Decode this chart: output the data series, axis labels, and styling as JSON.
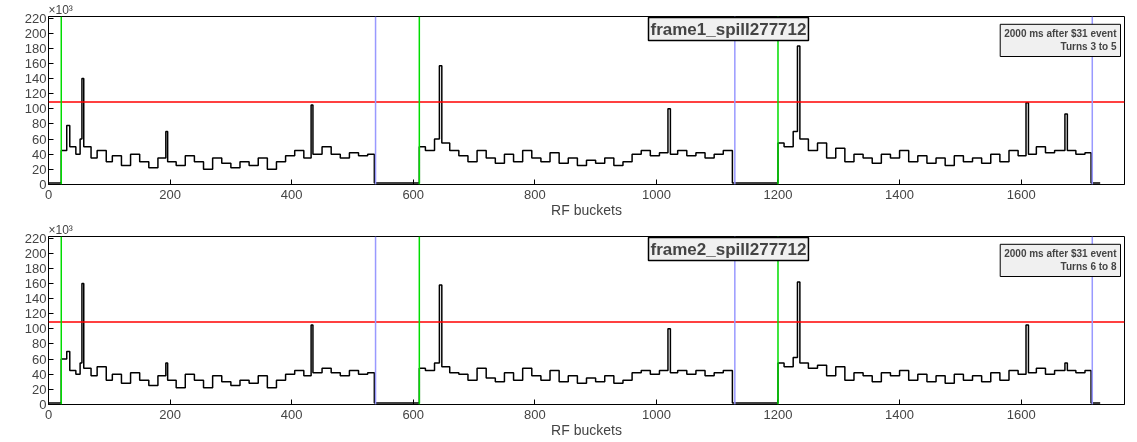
{
  "chart_data": [
    {
      "type": "step",
      "title": "frame1_spill277712",
      "xlabel": "RF buckets",
      "annotations": [
        "×10³",
        "2000 ms after $31 event",
        "Turns 3 to 5"
      ],
      "x": [
        0,
        21,
        30,
        35,
        45,
        52,
        55,
        58,
        70,
        80,
        95,
        105,
        120,
        135,
        150,
        165,
        180,
        193,
        196,
        210,
        225,
        240,
        255,
        270,
        285,
        300,
        315,
        330,
        345,
        360,
        375,
        390,
        405,
        420,
        432,
        435,
        450,
        465,
        480,
        495,
        510,
        525,
        536,
        610,
        620,
        635,
        643,
        647,
        660,
        675,
        690,
        705,
        720,
        735,
        750,
        765,
        780,
        795,
        810,
        825,
        840,
        855,
        870,
        885,
        900,
        915,
        930,
        945,
        960,
        975,
        990,
        1005,
        1019,
        1023,
        1035,
        1050,
        1065,
        1080,
        1095,
        1110,
        1125,
        1200,
        1210,
        1225,
        1232,
        1236,
        1250,
        1265,
        1280,
        1295,
        1310,
        1325,
        1340,
        1355,
        1370,
        1385,
        1400,
        1415,
        1430,
        1445,
        1460,
        1475,
        1490,
        1505,
        1520,
        1535,
        1550,
        1565,
        1580,
        1595,
        1608,
        1612,
        1625,
        1640,
        1655,
        1672,
        1676,
        1690,
        1705,
        1715,
        1730
      ],
      "series": [
        {
          "color": "#000000",
          "values": [
            2,
            45,
            78,
            50,
            40,
            60,
            140,
            50,
            35,
            45,
            30,
            38,
            25,
            40,
            30,
            22,
            35,
            70,
            30,
            25,
            38,
            30,
            20,
            35,
            28,
            22,
            30,
            25,
            35,
            20,
            30,
            38,
            45,
            35,
            105,
            40,
            50,
            40,
            35,
            42,
            38,
            40,
            2,
            50,
            45,
            60,
            157,
            55,
            45,
            38,
            30,
            45,
            35,
            28,
            40,
            30,
            45,
            35,
            30,
            42,
            28,
            35,
            25,
            32,
            28,
            35,
            25,
            30,
            40,
            45,
            38,
            42,
            100,
            40,
            45,
            38,
            42,
            35,
            40,
            45,
            2,
            55,
            50,
            70,
            183,
            60,
            45,
            55,
            35,
            48,
            30,
            40,
            35,
            28,
            40,
            35,
            45,
            30,
            38,
            28,
            35,
            25,
            38,
            30,
            35,
            28,
            40,
            30,
            45,
            38,
            108,
            40,
            50,
            42,
            45,
            93,
            45,
            40,
            42,
            2,
            2
          ]
        }
      ],
      "xlim": [
        0,
        1770
      ],
      "ylim": [
        0,
        222
      ],
      "xticks": [
        0,
        200,
        400,
        600,
        800,
        1000,
        1200,
        1400,
        1600
      ],
      "yticks": [
        0,
        20,
        40,
        60,
        80,
        100,
        120,
        140,
        160,
        180,
        200,
        220
      ],
      "ref_lines": [
        {
          "axis": "y",
          "value": 109,
          "color": "#ff0000"
        },
        {
          "axis": "x",
          "value": 21,
          "color": "#00dd00"
        },
        {
          "axis": "x",
          "value": 538,
          "color": "#9999ff"
        },
        {
          "axis": "x",
          "value": 610,
          "color": "#00dd00"
        },
        {
          "axis": "x",
          "value": 1129,
          "color": "#9999ff"
        },
        {
          "axis": "x",
          "value": 1200,
          "color": "#00dd00"
        },
        {
          "axis": "x",
          "value": 1717,
          "color": "#9999ff"
        }
      ],
      "grid": false
    },
    {
      "type": "step",
      "title": "frame2_spill277712",
      "xlabel": "RF buckets",
      "annotations": [
        "×10³",
        "2000 ms after $31 event",
        "Turns 6 to 8"
      ],
      "x": [
        0,
        21,
        30,
        35,
        45,
        52,
        55,
        58,
        70,
        80,
        95,
        105,
        120,
        135,
        150,
        165,
        180,
        193,
        196,
        210,
        225,
        240,
        255,
        270,
        285,
        300,
        315,
        330,
        345,
        360,
        375,
        390,
        405,
        420,
        432,
        435,
        450,
        465,
        480,
        495,
        510,
        525,
        536,
        610,
        620,
        635,
        643,
        647,
        660,
        675,
        690,
        705,
        720,
        735,
        750,
        765,
        780,
        795,
        810,
        825,
        840,
        855,
        870,
        885,
        900,
        915,
        930,
        945,
        960,
        975,
        990,
        1005,
        1019,
        1023,
        1035,
        1050,
        1065,
        1080,
        1095,
        1110,
        1125,
        1200,
        1210,
        1225,
        1232,
        1236,
        1250,
        1265,
        1280,
        1295,
        1310,
        1325,
        1340,
        1355,
        1370,
        1385,
        1400,
        1415,
        1430,
        1445,
        1460,
        1475,
        1490,
        1505,
        1520,
        1535,
        1550,
        1565,
        1580,
        1595,
        1608,
        1612,
        1625,
        1640,
        1655,
        1672,
        1676,
        1690,
        1705,
        1715,
        1730
      ],
      "series": [
        {
          "color": "#000000",
          "values": [
            2,
            60,
            70,
            45,
            40,
            55,
            160,
            48,
            38,
            50,
            32,
            40,
            28,
            42,
            32,
            25,
            38,
            55,
            32,
            22,
            40,
            32,
            22,
            38,
            30,
            25,
            32,
            28,
            38,
            22,
            32,
            40,
            45,
            38,
            105,
            42,
            48,
            42,
            38,
            45,
            40,
            42,
            2,
            48,
            45,
            55,
            158,
            50,
            42,
            40,
            32,
            48,
            35,
            30,
            42,
            32,
            48,
            38,
            32,
            45,
            30,
            38,
            28,
            35,
            30,
            38,
            28,
            32,
            42,
            45,
            40,
            45,
            100,
            42,
            45,
            40,
            45,
            38,
            42,
            45,
            2,
            55,
            50,
            62,
            162,
            55,
            48,
            52,
            38,
            50,
            32,
            42,
            38,
            30,
            42,
            38,
            45,
            32,
            40,
            30,
            38,
            28,
            40,
            32,
            38,
            30,
            42,
            32,
            45,
            40,
            105,
            42,
            48,
            40,
            45,
            55,
            45,
            42,
            45,
            2,
            2
          ]
        }
      ],
      "xlim": [
        0,
        1770
      ],
      "ylim": [
        0,
        222
      ],
      "xticks": [
        0,
        200,
        400,
        600,
        800,
        1000,
        1200,
        1400,
        1600
      ],
      "yticks": [
        0,
        20,
        40,
        60,
        80,
        100,
        120,
        140,
        160,
        180,
        200,
        220
      ],
      "ref_lines": [
        {
          "axis": "y",
          "value": 109,
          "color": "#ff0000"
        },
        {
          "axis": "x",
          "value": 21,
          "color": "#00dd00"
        },
        {
          "axis": "x",
          "value": 538,
          "color": "#9999ff"
        },
        {
          "axis": "x",
          "value": 610,
          "color": "#00dd00"
        },
        {
          "axis": "x",
          "value": 1129,
          "color": "#9999ff"
        },
        {
          "axis": "x",
          "value": 1200,
          "color": "#00dd00"
        },
        {
          "axis": "x",
          "value": 1717,
          "color": "#9999ff"
        }
      ],
      "grid": false
    }
  ]
}
